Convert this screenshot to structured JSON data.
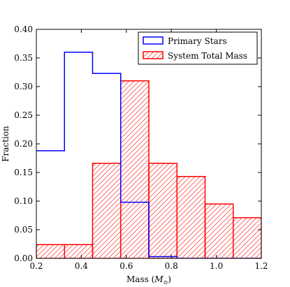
{
  "chart_data": {
    "type": "bar",
    "title": "",
    "xlabel": "Mass (",
    "xlabel_symbol": "M",
    "xlabel_subscript": "⊙",
    "xlabel_close": ")",
    "ylabel": "Fraction",
    "xlim": [
      0.2,
      1.2
    ],
    "ylim": [
      0.0,
      0.4
    ],
    "x_ticks": [
      "0.2",
      "0.4",
      "0.6",
      "0.8",
      "1.0",
      "1.2"
    ],
    "y_ticks": [
      "0.00",
      "0.05",
      "0.10",
      "0.15",
      "0.20",
      "0.25",
      "0.30",
      "0.35",
      "0.40"
    ],
    "grid": false,
    "legend_position": "top-right",
    "bin_edges": [
      0.2,
      0.325,
      0.45,
      0.575,
      0.7,
      0.825,
      0.95,
      1.075,
      1.2
    ],
    "series": [
      {
        "name": "Primary Stars",
        "style": "step",
        "color": "#0000ff",
        "values": [
          0.188,
          0.36,
          0.323,
          0.098,
          0.003,
          0.0,
          0.0,
          0.0
        ]
      },
      {
        "name": "System Total Mass",
        "style": "hatched",
        "color": "#ff0000",
        "values": [
          0.024,
          0.024,
          0.166,
          0.31,
          0.166,
          0.143,
          0.095,
          0.071
        ]
      }
    ]
  }
}
